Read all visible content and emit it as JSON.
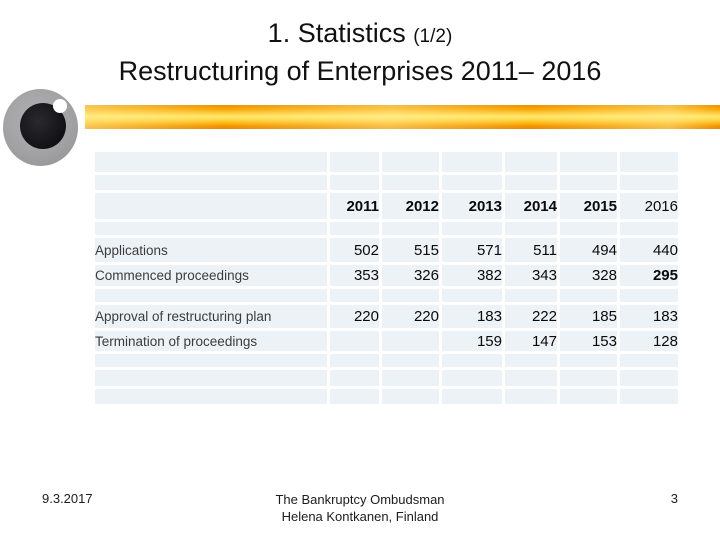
{
  "title": {
    "line1": "1. Statistics",
    "line1_suffix": "(1/2)",
    "line2": "Restructuring of Enterprises 2011– 2016"
  },
  "logo": {
    "name": "eye-logo"
  },
  "table": {
    "years": [
      "2011",
      "2012",
      "2013",
      "2014",
      "2015",
      "2016"
    ],
    "rows": [
      {
        "label": "Applications",
        "values": [
          "502",
          "515",
          "571",
          "511",
          "494",
          "440"
        ]
      },
      {
        "label": "Commenced proceedings",
        "values": [
          "353",
          "326",
          "382",
          "343",
          "328",
          "295"
        ]
      },
      {
        "label": "Approval of restructuring plan",
        "values": [
          "220",
          "220",
          "183",
          "222",
          "185",
          "183"
        ]
      },
      {
        "label": "Termination of proceedings",
        "values": [
          "",
          "",
          "159",
          "147",
          "153",
          "128"
        ]
      }
    ],
    "style_hints": {
      "regular_weight_header_years": [
        "2016"
      ],
      "bold_value_cells": [
        {
          "row": 1,
          "col": 5
        }
      ]
    }
  },
  "footer": {
    "date": "9.3.2017",
    "credit_line1": "The Bankruptcy Ombudsman",
    "credit_line2": "Helena Kontkanen, Finland",
    "page_number": "3"
  },
  "colors": {
    "banner_orange": "#F59B00",
    "banner_yellow_highlight": "#FFE76E",
    "table_cell_bg": "#EDF2F6"
  }
}
